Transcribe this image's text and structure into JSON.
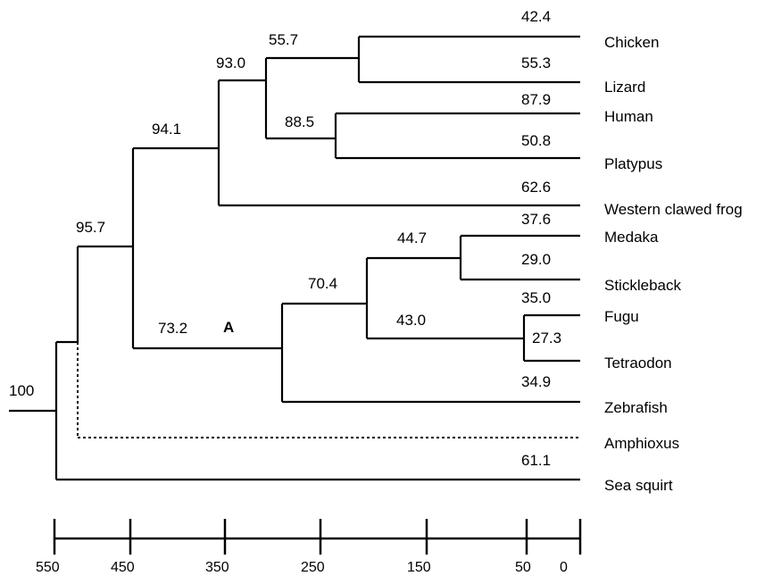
{
  "taxa": [
    "Chicken",
    "Lizard",
    "Human",
    "Platypus",
    "Western clawed frog",
    "Medaka",
    "Stickleback",
    "Fugu",
    "Tetraodon",
    "Zebrafish",
    "Amphioxus",
    "Sea squirt"
  ],
  "support_values": {
    "root": "100",
    "n95_7": "95.7",
    "n94_1": "94.1",
    "n93_0": "93.0",
    "n55_7": "55.7",
    "n88_5": "88.5",
    "n73_2": "73.2",
    "n70_4": "70.4",
    "n44_7": "44.7",
    "n43_0": "43.0"
  },
  "branch_labels": {
    "chicken": "42.4",
    "lizard": "55.3",
    "human": "87.9",
    "platypus": "50.8",
    "frog": "62.6",
    "medaka": "37.6",
    "stickleback": "29.0",
    "fugu": "35.0",
    "tetraodon": "27.3",
    "zebrafish": "34.9",
    "sea_squirt": "61.1"
  },
  "node_tag": "A",
  "scale_axis": {
    "ticks": [
      550,
      450,
      350,
      250,
      150,
      50,
      0
    ],
    "tick_labels": [
      "550",
      "450",
      "350",
      "250",
      "150",
      "50",
      "0"
    ]
  },
  "colors": {
    "line": "#000000",
    "background": "#ffffff"
  },
  "amphioxus_branch_style": "dotted"
}
